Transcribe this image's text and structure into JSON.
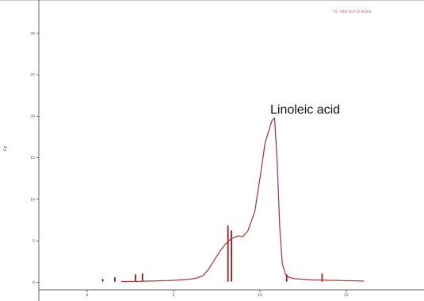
{
  "chart_data": {
    "type": "line",
    "title": "",
    "header_text": "TIC: fatty acid 12.d\\data",
    "xlabel": "",
    "ylabel": "Cp",
    "annotation": "Linoleic acid",
    "x": [
      0,
      0.3,
      0.7,
      1.0,
      1.3,
      1.7,
      2.0,
      2.3,
      2.7,
      3.0,
      3.3,
      3.7,
      4.0,
      4.3,
      4.7,
      5.0,
      5.3,
      5.7,
      6.0,
      6.3,
      6.7,
      7.0,
      7.3,
      7.7,
      8.0,
      8.3,
      8.7,
      8.85,
      9.0,
      9.15,
      9.3,
      9.5,
      9.7,
      10.0,
      10.3,
      10.7,
      11.0,
      11.3,
      11.7,
      12.0,
      12.3,
      12.7,
      13.0,
      13.3,
      13.7,
      14.0
    ],
    "y": [
      0.1,
      0.1,
      0.12,
      0.12,
      0.15,
      0.16,
      0.18,
      0.2,
      0.22,
      0.25,
      0.3,
      0.35,
      0.4,
      0.5,
      0.8,
      1.5,
      2.5,
      3.8,
      4.6,
      5.2,
      5.6,
      5.5,
      6.2,
      8.5,
      12.5,
      16.8,
      19.5,
      19.8,
      14.5,
      6.5,
      2.2,
      0.9,
      0.6,
      0.45,
      0.4,
      0.35,
      0.3,
      0.3,
      0.28,
      0.25,
      0.25,
      0.22,
      0.2,
      0.2,
      0.18,
      0.16
    ],
    "xlim": [
      -4.8,
      17.5
    ],
    "ylim": [
      -0.9,
      34
    ],
    "xticks": [
      -2,
      3,
      8,
      13
    ],
    "xtick_labels": [
      "0",
      "5",
      "10",
      "15"
    ],
    "yticks": [
      0,
      5,
      10,
      15,
      20,
      25,
      30
    ],
    "spikes": [
      {
        "x": -1.1,
        "y": 0.35
      },
      {
        "x": -0.4,
        "y": 0.55
      },
      {
        "x": 0.8,
        "y": 0.9
      },
      {
        "x": 1.2,
        "y": 1.0
      },
      {
        "x": 6.15,
        "y": 6.8
      },
      {
        "x": 6.35,
        "y": 6.2
      },
      {
        "x": 9.55,
        "y": 0.9
      },
      {
        "x": 11.6,
        "y": 1.0
      }
    ],
    "grid": false,
    "colors": {
      "trace": "#a33a3a",
      "spike": "#8f1c1c",
      "axis": "#666666",
      "frame": "#8b8b8b",
      "annotation": "#111111"
    }
  }
}
